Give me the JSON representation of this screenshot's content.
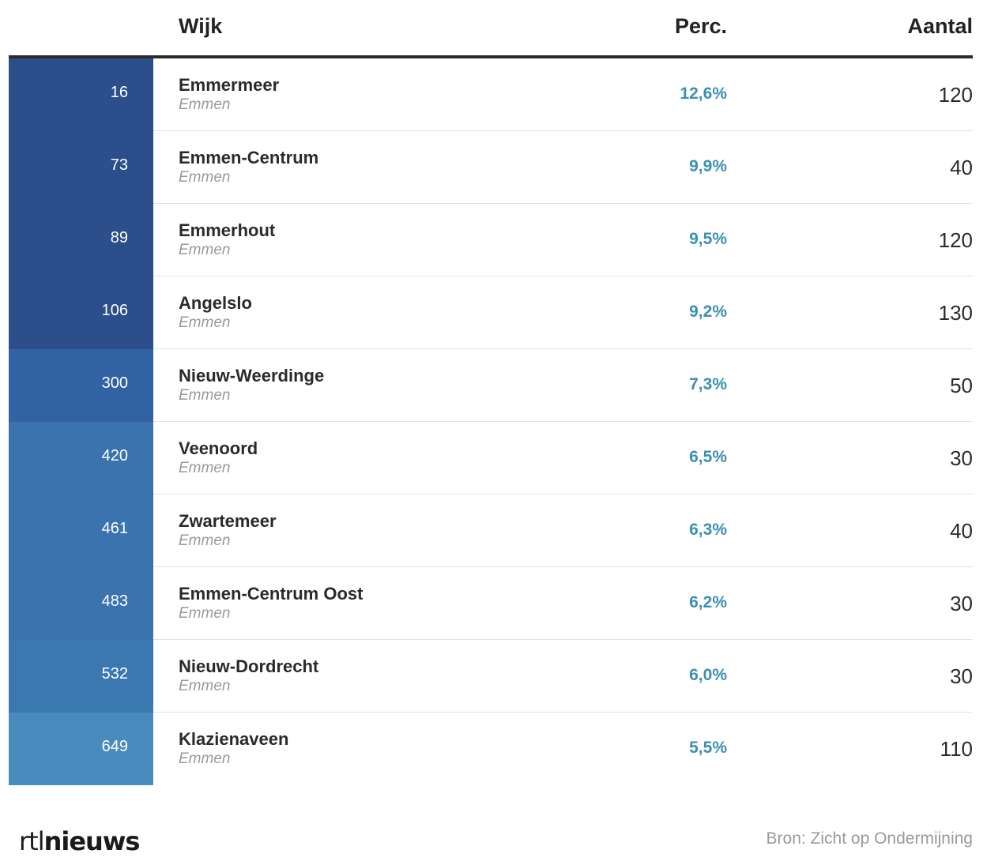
{
  "header": {
    "col_name": "Wijk",
    "col_perc": "Perc.",
    "col_count": "Aantal"
  },
  "rows": [
    {
      "rank": "16",
      "name": "Emmermeer",
      "municipality": "Emmen",
      "perc": "12,6%",
      "count": "120",
      "color": "#2c4f8c"
    },
    {
      "rank": "73",
      "name": "Emmen-Centrum",
      "municipality": "Emmen",
      "perc": "9,9%",
      "count": "40",
      "color": "#2c4f8c"
    },
    {
      "rank": "89",
      "name": "Emmerhout",
      "municipality": "Emmen",
      "perc": "9,5%",
      "count": "120",
      "color": "#2c4f8c"
    },
    {
      "rank": "106",
      "name": "Angelslo",
      "municipality": "Emmen",
      "perc": "9,2%",
      "count": "130",
      "color": "#2c4f8c"
    },
    {
      "rank": "300",
      "name": "Nieuw-Weerdinge",
      "municipality": "Emmen",
      "perc": "7,3%",
      "count": "50",
      "color": "#3262a4"
    },
    {
      "rank": "420",
      "name": "Veenoord",
      "municipality": "Emmen",
      "perc": "6,5%",
      "count": "30",
      "color": "#3a73ad"
    },
    {
      "rank": "461",
      "name": "Zwartemeer",
      "municipality": "Emmen",
      "perc": "6,3%",
      "count": "40",
      "color": "#3a73ad"
    },
    {
      "rank": "483",
      "name": "Emmen-Centrum Oost",
      "municipality": "Emmen",
      "perc": "6,2%",
      "count": "30",
      "color": "#3a73ad"
    },
    {
      "rank": "532",
      "name": "Nieuw-Dordrecht",
      "municipality": "Emmen",
      "perc": "6,0%",
      "count": "30",
      "color": "#3c78b0"
    },
    {
      "rank": "649",
      "name": "Klazienaveen",
      "municipality": "Emmen",
      "perc": "5,5%",
      "count": "110",
      "color": "#4a8bbd"
    }
  ],
  "footer": {
    "logo_light": "rtl",
    "logo_bold": "nieuws",
    "source": "Bron: Zicht op Ondermijning"
  }
}
